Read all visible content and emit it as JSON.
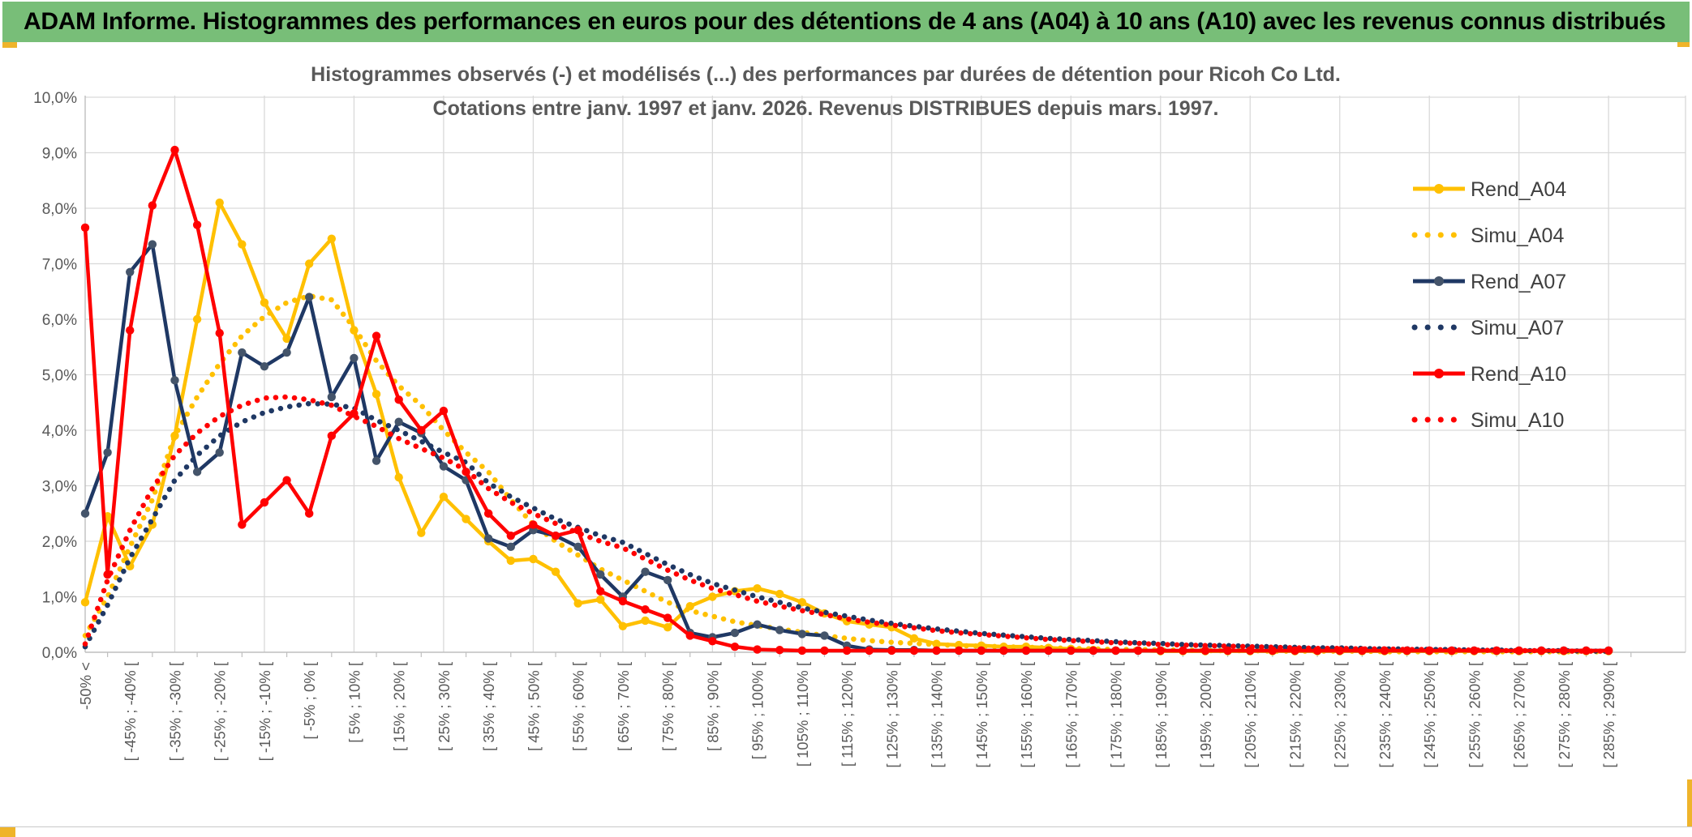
{
  "window": {
    "title": "ADAM Informe. Histogrammes des performances en euros pour des détentions de 4 ans (A04) à 10 ans (A10) avec les revenus connus distribués"
  },
  "accent": {
    "header_bg": "#78BE78",
    "gold": "#EFB42A"
  },
  "chart_data": {
    "type": "line",
    "title_line1": "Histogrammes observés (-) et modélisés (...) des performances par durées de détention pour Ricoh Co Ltd.",
    "title_line2": "Cotations entre janv. 1997 et janv. 2026. Revenus DISTRIBUES depuis mars. 1997.",
    "ylim": [
      0,
      10
    ],
    "grid": true,
    "legend_position": "right",
    "y_ticks": [
      "10,0%",
      "9,0%",
      "8,0%",
      "7,0%",
      "6,0%",
      "5,0%",
      "4,0%",
      "3,0%",
      "2,0%",
      "1,0%",
      "0,0%"
    ],
    "categories": [
      "-50% <",
      "",
      "[ -45% ; -40% [",
      "",
      "[ -35% ; -30% [",
      "",
      "[ -25% ; -20% [",
      "",
      "[ -15% ; -10% [",
      "",
      "[ -5% ; 0% [",
      "",
      "[ 5% ; 10% [",
      "",
      "[ 15% ; 20% [",
      "",
      "[ 25% ; 30% [",
      "",
      "[ 35% ; 40% [",
      "",
      "[ 45% ; 50% [",
      "",
      "[ 55% ; 60% [",
      "",
      "[ 65% ; 70% [",
      "",
      "[ 75% ; 80% [",
      "",
      "[ 85% ; 90% [",
      "",
      "[ 95% ; 100% [",
      "",
      "[ 105% ; 110% [",
      "",
      "[ 115% ; 120% [",
      "",
      "[ 125% ; 130% [",
      "",
      "[ 135% ; 140% [",
      "",
      "[ 145% ; 150% [",
      "",
      "[ 155% ; 160% [",
      "",
      "[ 165% ; 170% [",
      "",
      "[ 175% ; 180% [",
      "",
      "[ 185% ; 190% [",
      "",
      "[ 195% ; 200% [",
      "",
      "[ 205% ; 210% [",
      "",
      "[ 215% ; 220% [",
      "",
      "[ 225% ; 230% [",
      "",
      "[ 235% ; 240% [",
      "",
      "[ 245% ; 250% [",
      "",
      "[ 255% ; 260% [",
      "",
      "[ 265% ; 270% [",
      "",
      "[ 275% ; 280% [",
      "",
      "[ 285% ; 290% ["
    ],
    "series": [
      {
        "name": "Rend_A04",
        "style": "solid",
        "color": "#FFC000",
        "marker_color": "#FFC000",
        "values": [
          0.9,
          2.45,
          1.55,
          2.3,
          3.9,
          6.0,
          8.1,
          7.35,
          6.3,
          5.65,
          7.0,
          7.45,
          5.8,
          4.65,
          3.15,
          2.15,
          2.8,
          2.4,
          2.0,
          1.65,
          1.68,
          1.45,
          0.88,
          0.95,
          0.47,
          0.57,
          0.45,
          0.83,
          1.0,
          1.1,
          1.15,
          1.05,
          0.9,
          0.7,
          0.56,
          0.5,
          0.45,
          0.25,
          0.15,
          0.13,
          0.12,
          0.1,
          0.1,
          0.08,
          0.06,
          0.04,
          0.03,
          0.03,
          0.02,
          0.02,
          0.02,
          0.02,
          0.02,
          0.02,
          0.02,
          0.02,
          0.02,
          0.02,
          0.02,
          0.02,
          0.02,
          0.02,
          0.02,
          0.02,
          0.02,
          0.02,
          0.02,
          0.02,
          0.02
        ]
      },
      {
        "name": "Simu_A04",
        "style": "dotted",
        "color": "#FFC000",
        "marker_color": "#FFC000",
        "values": [
          0.3,
          1.0,
          1.9,
          2.75,
          3.9,
          4.6,
          5.2,
          5.7,
          6.05,
          6.3,
          6.42,
          6.35,
          5.85,
          5.25,
          4.8,
          4.45,
          4.0,
          3.6,
          3.25,
          2.75,
          2.3,
          2.0,
          1.75,
          1.5,
          1.3,
          1.1,
          0.9,
          0.75,
          0.65,
          0.55,
          0.48,
          0.42,
          0.36,
          0.3,
          0.25,
          0.21,
          0.18,
          0.16,
          0.14,
          0.12,
          0.11,
          0.1,
          0.09,
          0.08,
          0.07,
          0.06,
          0.05,
          0.05,
          0.04,
          0.04,
          0.03,
          0.03,
          0.03,
          0.02,
          0.02,
          0.02,
          0.02,
          0.02,
          0.01,
          0.01,
          0.01,
          0.01,
          0.01,
          0.01,
          0.01,
          0.01,
          0.01,
          0.01,
          0.01
        ]
      },
      {
        "name": "Rend_A07",
        "style": "solid",
        "color": "#1F3864",
        "marker_color": "#44546A",
        "values": [
          2.5,
          3.6,
          6.85,
          7.35,
          4.9,
          3.25,
          3.6,
          5.4,
          5.15,
          5.4,
          6.4,
          4.6,
          5.3,
          3.45,
          4.15,
          3.95,
          3.35,
          3.1,
          2.05,
          1.9,
          2.2,
          2.1,
          1.9,
          1.4,
          1.0,
          1.45,
          1.3,
          0.35,
          0.27,
          0.35,
          0.5,
          0.4,
          0.33,
          0.3,
          0.12,
          0.05,
          0.04,
          0.04,
          0.03,
          0.03,
          0.03,
          0.03,
          0.03,
          0.03,
          0.03,
          0.03,
          0.03,
          0.03,
          0.03,
          0.03,
          0.03,
          0.03,
          0.03,
          0.03,
          0.03,
          0.03,
          0.03,
          0.03,
          0.03,
          0.03,
          0.03,
          0.03,
          0.03,
          0.03,
          0.03,
          0.03,
          0.03,
          0.03,
          0.03
        ]
      },
      {
        "name": "Simu_A07",
        "style": "dotted",
        "color": "#1F3864",
        "marker_color": "#1F3864",
        "values": [
          0.1,
          0.85,
          1.7,
          2.4,
          3.1,
          3.55,
          3.9,
          4.15,
          4.32,
          4.42,
          4.48,
          4.47,
          4.4,
          4.18,
          4.0,
          3.8,
          3.6,
          3.42,
          3.05,
          2.8,
          2.6,
          2.4,
          2.25,
          2.1,
          1.98,
          1.78,
          1.58,
          1.4,
          1.24,
          1.12,
          1.0,
          0.9,
          0.8,
          0.72,
          0.65,
          0.58,
          0.52,
          0.47,
          0.42,
          0.38,
          0.34,
          0.31,
          0.28,
          0.25,
          0.23,
          0.21,
          0.19,
          0.17,
          0.16,
          0.14,
          0.13,
          0.12,
          0.11,
          0.1,
          0.09,
          0.08,
          0.08,
          0.07,
          0.06,
          0.06,
          0.05,
          0.05,
          0.04,
          0.04,
          0.03,
          0.03,
          0.03,
          0.02,
          0.02
        ]
      },
      {
        "name": "Rend_A10",
        "style": "solid",
        "color": "#FF0000",
        "marker_color": "#FF0000",
        "values": [
          7.65,
          1.4,
          5.8,
          8.05,
          9.05,
          7.7,
          5.75,
          2.3,
          2.7,
          3.1,
          2.5,
          3.9,
          4.3,
          5.7,
          4.55,
          4.0,
          4.35,
          3.25,
          2.5,
          2.1,
          2.3,
          2.1,
          2.2,
          1.1,
          0.92,
          0.77,
          0.62,
          0.3,
          0.2,
          0.1,
          0.05,
          0.04,
          0.03,
          0.03,
          0.03,
          0.03,
          0.03,
          0.03,
          0.03,
          0.03,
          0.03,
          0.03,
          0.03,
          0.03,
          0.03,
          0.03,
          0.03,
          0.03,
          0.03,
          0.03,
          0.03,
          0.03,
          0.03,
          0.03,
          0.03,
          0.03,
          0.03,
          0.03,
          0.03,
          0.03,
          0.03,
          0.03,
          0.03,
          0.03,
          0.03,
          0.03,
          0.03,
          0.03,
          0.03
        ]
      },
      {
        "name": "Simu_A10",
        "style": "dotted",
        "color": "#FF0000",
        "marker_color": "#FF0000",
        "values": [
          0.15,
          1.3,
          2.2,
          2.95,
          3.55,
          3.95,
          4.25,
          4.45,
          4.58,
          4.6,
          4.55,
          4.45,
          4.25,
          4.07,
          3.85,
          3.67,
          3.5,
          3.28,
          2.95,
          2.7,
          2.5,
          2.32,
          2.15,
          2.0,
          1.88,
          1.68,
          1.48,
          1.3,
          1.15,
          1.04,
          0.92,
          0.83,
          0.75,
          0.68,
          0.6,
          0.54,
          0.49,
          0.44,
          0.39,
          0.35,
          0.32,
          0.29,
          0.26,
          0.23,
          0.21,
          0.19,
          0.17,
          0.16,
          0.14,
          0.13,
          0.12,
          0.11,
          0.1,
          0.09,
          0.08,
          0.07,
          0.07,
          0.06,
          0.06,
          0.05,
          0.05,
          0.04,
          0.04,
          0.03,
          0.03,
          0.03,
          0.02,
          0.02,
          0.02
        ]
      }
    ]
  }
}
